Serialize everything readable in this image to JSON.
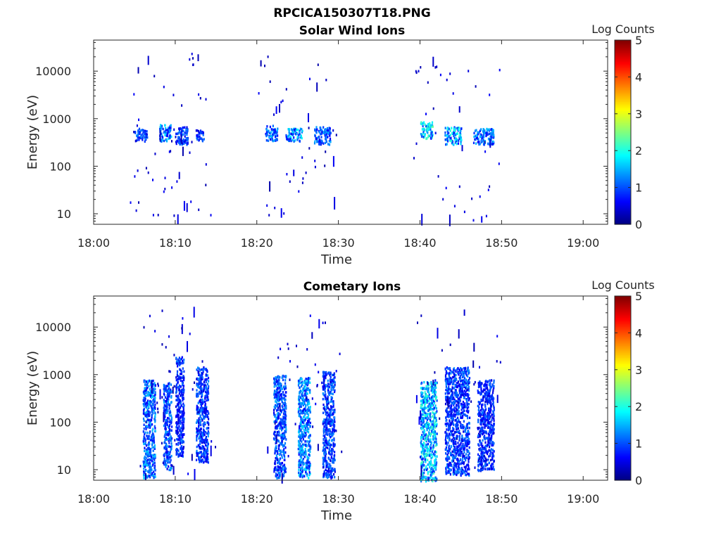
{
  "figure_title": "RPCICA150307T18.PNG",
  "colors": {
    "axis": "#262626",
    "background": "#ffffff",
    "colormap": "jet"
  },
  "chart_data": [
    {
      "type": "heatmap",
      "title": "Solar Wind Ions",
      "xlabel": "Time",
      "ylabel": "Energy (eV)",
      "yscale": "log",
      "ylim": [
        6,
        45000
      ],
      "xlim": [
        "18:00",
        "19:03"
      ],
      "xticks": [
        "18:00",
        "18:10",
        "18:20",
        "18:30",
        "18:40",
        "18:50",
        "19:00"
      ],
      "yticks": [
        "10",
        "100",
        "1000",
        "10000"
      ],
      "colorbar": {
        "label": "Log Counts",
        "range": [
          0,
          5
        ],
        "ticks": [
          "0",
          "1",
          "2",
          "3",
          "4",
          "5"
        ]
      },
      "clusters": [
        {
          "t0": "18:05",
          "t1": "18:06.5",
          "e0": 350,
          "e1": 650,
          "level": 0.9
        },
        {
          "t0": "18:08",
          "t1": "18:09.5",
          "e0": 350,
          "e1": 800,
          "level": 1.2
        },
        {
          "t0": "18:10",
          "t1": "18:11.5",
          "e0": 300,
          "e1": 700,
          "level": 0.9
        },
        {
          "t0": "18:12.5",
          "t1": "18:13.5",
          "e0": 350,
          "e1": 600,
          "level": 0.8
        },
        {
          "t0": "18:21",
          "t1": "18:22.5",
          "e0": 350,
          "e1": 750,
          "level": 1.1
        },
        {
          "t0": "18:23.5",
          "t1": "18:25.5",
          "e0": 350,
          "e1": 650,
          "level": 1.3
        },
        {
          "t0": "18:27",
          "t1": "18:29",
          "e0": 300,
          "e1": 700,
          "level": 1.0
        },
        {
          "t0": "18:40",
          "t1": "18:41.5",
          "e0": 400,
          "e1": 900,
          "level": 1.6
        },
        {
          "t0": "18:43",
          "t1": "18:45",
          "e0": 300,
          "e1": 700,
          "level": 1.4
        },
        {
          "t0": "18:46.5",
          "t1": "18:49",
          "e0": 300,
          "e1": 650,
          "level": 1.1
        }
      ]
    },
    {
      "type": "heatmap",
      "title": "Cometary Ions",
      "xlabel": "Time",
      "ylabel": "Energy (eV)",
      "yscale": "log",
      "ylim": [
        6,
        45000
      ],
      "xlim": [
        "18:00",
        "19:03"
      ],
      "xticks": [
        "18:00",
        "18:10",
        "18:20",
        "18:30",
        "18:40",
        "18:50",
        "19:00"
      ],
      "yticks": [
        "10",
        "100",
        "1000",
        "10000"
      ],
      "colorbar": {
        "label": "Log Counts",
        "range": [
          0,
          5
        ],
        "ticks": [
          "0",
          "1",
          "2",
          "3",
          "4",
          "5"
        ]
      },
      "clusters": [
        {
          "t0": "18:06",
          "t1": "18:07.5",
          "e0": 7,
          "e1": 800,
          "level": 1.1
        },
        {
          "t0": "18:08.5",
          "t1": "18:09.5",
          "e0": 10,
          "e1": 700,
          "level": 1.0
        },
        {
          "t0": "18:10",
          "t1": "18:11",
          "e0": 20,
          "e1": 2500,
          "level": 0.8
        },
        {
          "t0": "18:12.5",
          "t1": "18:14",
          "e0": 15,
          "e1": 1500,
          "level": 0.9
        },
        {
          "t0": "18:22",
          "t1": "18:23.5",
          "e0": 7,
          "e1": 1000,
          "level": 1.0
        },
        {
          "t0": "18:25",
          "t1": "18:26.5",
          "e0": 7,
          "e1": 900,
          "level": 1.2
        },
        {
          "t0": "18:28",
          "t1": "18:29.5",
          "e0": 7,
          "e1": 1200,
          "level": 0.9
        },
        {
          "t0": "18:40",
          "t1": "18:42",
          "e0": 6,
          "e1": 800,
          "level": 1.5
        },
        {
          "t0": "18:43",
          "t1": "18:46",
          "e0": 8,
          "e1": 1500,
          "level": 0.9
        },
        {
          "t0": "18:47",
          "t1": "18:49",
          "e0": 10,
          "e1": 800,
          "level": 0.8
        }
      ]
    }
  ]
}
